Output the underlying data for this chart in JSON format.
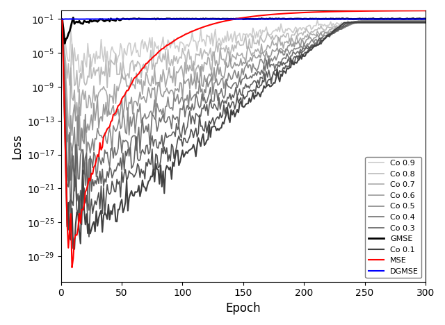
{
  "title": "",
  "xlabel": "Epoch",
  "ylabel": "Loss",
  "xlim": [
    0,
    300
  ],
  "n_epochs": 300,
  "series": {
    "DGMSE": {
      "color": "#0000ff",
      "lw": 1.5,
      "zorder": 10
    },
    "MSE": {
      "color": "#ff0000",
      "lw": 1.5,
      "zorder": 9
    },
    "GMSE": {
      "color": "#000000",
      "lw": 2.0,
      "zorder": 8
    },
    "Co 0.1": {
      "color": "#404040",
      "lw": 1.5,
      "zorder": 7
    },
    "Co 0.2": {
      "color": "#505050",
      "lw": 1.2,
      "zorder": 6
    },
    "Co 0.3": {
      "color": "#606060",
      "lw": 1.2,
      "zorder": 5
    },
    "Co 0.4": {
      "color": "#707070",
      "lw": 1.2,
      "zorder": 4
    },
    "Co 0.5": {
      "color": "#888888",
      "lw": 1.2,
      "zorder": 3
    },
    "Co 0.6": {
      "color": "#999999",
      "lw": 1.2,
      "zorder": 2
    },
    "Co 0.7": {
      "color": "#aaaaaa",
      "lw": 1.2,
      "zorder": 1
    },
    "Co 0.8": {
      "color": "#bbbbbb",
      "lw": 1.2,
      "zorder": 0
    },
    "Co 0.9": {
      "color": "#cccccc",
      "lw": 1.2,
      "zorder": -1
    }
  },
  "legend_order": [
    "Co 0.9",
    "Co 0.8",
    "Co 0.7",
    "Co 0.6",
    "Co 0.5",
    "Co 0.4",
    "Co 0.3",
    "GMSE",
    "Co 0.1",
    "MSE",
    "DGMSE"
  ],
  "yticks": [
    0.1,
    1e-05,
    1e-09,
    1e-13,
    1e-17,
    1e-21,
    1e-25,
    1e-29
  ],
  "xticks": [
    0,
    50,
    100,
    150,
    200,
    250,
    300
  ]
}
